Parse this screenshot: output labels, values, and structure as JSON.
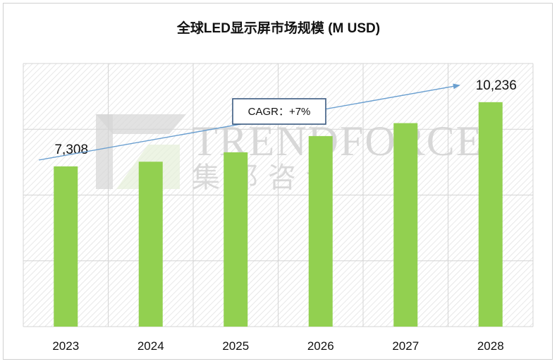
{
  "title": "全球LED显示屏市场规模 (M USD)",
  "watermark": {
    "latin": "TRENDFORCE",
    "cjk": "集邦咨询"
  },
  "colors": {
    "bar": "#92d050",
    "trend_line": "#6a9fd0",
    "callout_border": "#3a5a80",
    "grid": "#d4d4d4",
    "hatch": "#dedede"
  },
  "chart_data": {
    "type": "bar",
    "categories": [
      "2023",
      "2024",
      "2025",
      "2026",
      "2027",
      "2028"
    ],
    "values": [
      7308,
      7520,
      7950,
      8690,
      9280,
      10236
    ],
    "data_labels": [
      {
        "category": "2023",
        "text": "7,308"
      },
      {
        "category": "2028",
        "text": "10,236"
      }
    ],
    "annotation": {
      "text": "CAGR：+7%",
      "from": "2023",
      "to": "2028"
    },
    "ylim": [
      0,
      12000
    ],
    "ytick_step": 3000,
    "yaxis_labels_visible": false,
    "grid": true,
    "legend": "none"
  }
}
